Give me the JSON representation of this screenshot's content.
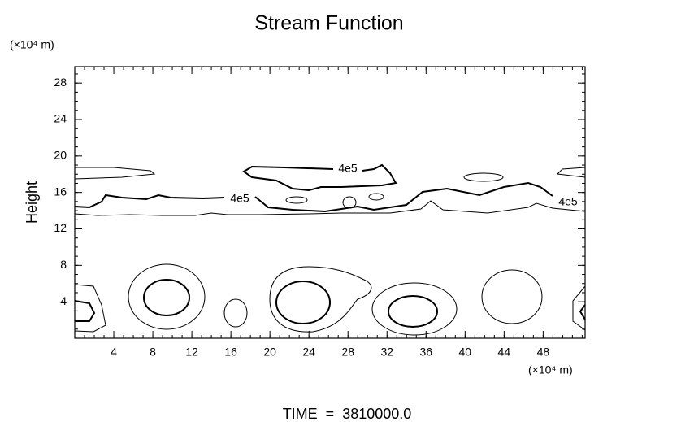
{
  "chart_data": {
    "type": "contour",
    "title": "Stream Function",
    "ylabel": "Height",
    "y_unit": "(×10⁴ m)",
    "x_unit": "(×10⁴ m)",
    "footer": "TIME  =  3810000.0",
    "contour_labels": [
      "4e5",
      "4e5",
      "4e5"
    ],
    "xlim": [
      0,
      52.3
    ],
    "xticks": [
      4,
      8,
      12,
      16,
      20,
      24,
      28,
      32,
      36,
      40,
      44,
      48
    ],
    "ylim": [
      0,
      29.8
    ],
    "yticks": [
      4,
      8,
      12,
      16,
      20,
      24,
      28
    ]
  }
}
